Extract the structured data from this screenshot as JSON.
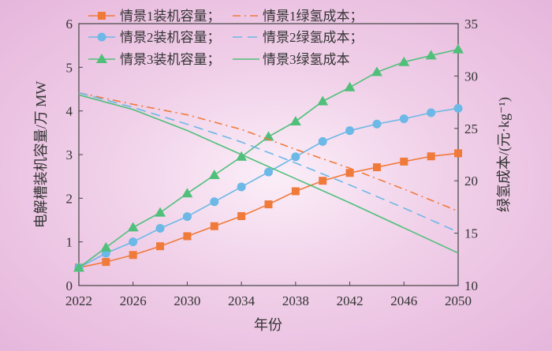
{
  "chart_data": {
    "type": "line",
    "xlabel": "年份",
    "ylabel_left": "电解槽装机容量/万 MW",
    "ylabel_right": "绿氢成本/(元·kg⁻¹)",
    "xlim": [
      2022,
      2050
    ],
    "ylim_left": [
      0,
      6
    ],
    "ylim_right": [
      10,
      35
    ],
    "x_ticks": [
      "2022",
      "2026",
      "2030",
      "2034",
      "2038",
      "2042",
      "2046",
      "2050"
    ],
    "y_left_ticks": [
      "0",
      "1",
      "2",
      "3",
      "4",
      "5",
      "6"
    ],
    "y_right_ticks": [
      "10",
      "15",
      "20",
      "25",
      "30",
      "35"
    ],
    "grid": false,
    "legend_position": "top-left",
    "capacity_x": [
      2022,
      2024,
      2026,
      2028,
      2030,
      2032,
      2034,
      2036,
      2038,
      2040,
      2042,
      2044,
      2046,
      2048,
      2050
    ],
    "cost_x": [
      2022,
      2026,
      2030,
      2034,
      2038,
      2042,
      2046,
      2050
    ],
    "series": [
      {
        "name": "情景1装机容量；",
        "axis": "left",
        "color": "#f07a3a",
        "marker": "square",
        "style": "solid",
        "values": [
          0.41,
          0.54,
          0.7,
          0.9,
          1.13,
          1.36,
          1.59,
          1.86,
          2.16,
          2.4,
          2.58,
          2.71,
          2.84,
          2.96,
          3.03
        ]
      },
      {
        "name": "情景2装机容量；",
        "axis": "left",
        "color": "#6cb8e6",
        "marker": "circle",
        "style": "solid",
        "values": [
          0.41,
          0.74,
          1.0,
          1.31,
          1.58,
          1.92,
          2.26,
          2.6,
          2.95,
          3.3,
          3.55,
          3.7,
          3.82,
          3.96,
          4.06
        ]
      },
      {
        "name": "情景3装机容量；",
        "axis": "left",
        "color": "#4fbf7a",
        "marker": "triangle",
        "style": "solid",
        "values": [
          0.41,
          0.87,
          1.33,
          1.67,
          2.11,
          2.53,
          2.95,
          3.41,
          3.76,
          4.22,
          4.54,
          4.89,
          5.12,
          5.27,
          5.41
        ]
      },
      {
        "name": "情景1绿氢成本；",
        "axis": "right",
        "color": "#f07a3a",
        "marker": "none",
        "style": "dashdot",
        "values": [
          28.4,
          27.3,
          26.3,
          24.9,
          23.0,
          21.2,
          19.2,
          17.1
        ]
      },
      {
        "name": "情景2绿氢成本；",
        "axis": "right",
        "color": "#6cb8e6",
        "marker": "none",
        "style": "dashed",
        "values": [
          28.4,
          27.0,
          25.4,
          23.7,
          21.7,
          19.6,
          17.4,
          15.1
        ]
      },
      {
        "name": "情景3绿氢成本",
        "axis": "right",
        "color": "#4fbf7a",
        "marker": "none",
        "style": "solid",
        "values": [
          28.2,
          26.8,
          24.8,
          22.5,
          20.2,
          17.9,
          15.5,
          13.1
        ]
      }
    ]
  }
}
